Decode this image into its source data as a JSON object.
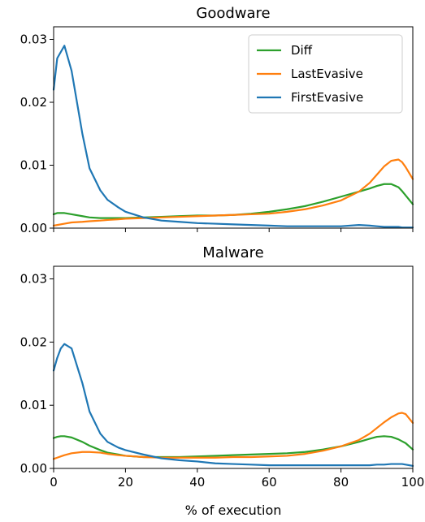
{
  "chart_data": [
    {
      "type": "line",
      "title": "Goodware",
      "xlabel": "",
      "ylabel": "",
      "xlim": [
        0,
        100
      ],
      "ylim": [
        0,
        0.032
      ],
      "yticks": [
        "0.00",
        "0.01",
        "0.02",
        "0.03"
      ],
      "ytick_values": [
        0,
        0.01,
        0.02,
        0.03
      ],
      "xticks": [],
      "xtick_values": [
        0,
        20,
        40,
        60,
        80,
        100
      ],
      "legend": {
        "placement": "top-right",
        "entries": [
          "Diff",
          "LastEvasive",
          "FirstEvasive"
        ]
      },
      "x": [
        0,
        1,
        3,
        5,
        8,
        10,
        13,
        15,
        18,
        20,
        25,
        30,
        35,
        40,
        45,
        50,
        55,
        60,
        65,
        70,
        75,
        80,
        85,
        88,
        90,
        92,
        94,
        96,
        97,
        98,
        100
      ],
      "series": [
        {
          "name": "Diff",
          "color": "#2ca02c",
          "values": [
            0.0022,
            0.0024,
            0.0024,
            0.0022,
            0.0019,
            0.0017,
            0.0016,
            0.0016,
            0.0016,
            0.0016,
            0.0017,
            0.0018,
            0.0019,
            0.002,
            0.002,
            0.0021,
            0.0023,
            0.0026,
            0.003,
            0.0035,
            0.0042,
            0.005,
            0.0058,
            0.0063,
            0.0067,
            0.007,
            0.007,
            0.0065,
            0.0059,
            0.0052,
            0.0038
          ]
        },
        {
          "name": "LastEvasive",
          "color": "#ff7f0e",
          "values": [
            0.0004,
            0.0005,
            0.0007,
            0.0009,
            0.001,
            0.0011,
            0.0012,
            0.0013,
            0.0014,
            0.0015,
            0.0016,
            0.0017,
            0.0018,
            0.0019,
            0.002,
            0.0021,
            0.0022,
            0.0023,
            0.0026,
            0.003,
            0.0036,
            0.0044,
            0.0058,
            0.0072,
            0.0085,
            0.0098,
            0.0107,
            0.0109,
            0.0105,
            0.0097,
            0.0078
          ]
        },
        {
          "name": "FirstEvasive",
          "color": "#1f77b4",
          "values": [
            0.022,
            0.027,
            0.029,
            0.025,
            0.015,
            0.0095,
            0.006,
            0.0045,
            0.0033,
            0.0026,
            0.0017,
            0.0012,
            0.001,
            0.0008,
            0.0007,
            0.0006,
            0.0005,
            0.0004,
            0.0003,
            0.0003,
            0.0003,
            0.0003,
            0.0005,
            0.0004,
            0.0003,
            0.0002,
            0.0002,
            0.0002,
            0.0001,
            0.0001,
            0.0001
          ]
        }
      ]
    },
    {
      "type": "line",
      "title": "Malware",
      "xlabel": "% of execution",
      "ylabel": "",
      "xlim": [
        0,
        100
      ],
      "ylim": [
        0,
        0.032
      ],
      "yticks": [
        "0.00",
        "0.01",
        "0.02",
        "0.03"
      ],
      "ytick_values": [
        0,
        0.01,
        0.02,
        0.03
      ],
      "xticks": [
        "0",
        "20",
        "40",
        "60",
        "80",
        "100"
      ],
      "xtick_values": [
        0,
        20,
        40,
        60,
        80,
        100
      ],
      "x": [
        0,
        1,
        2,
        3,
        5,
        8,
        10,
        13,
        15,
        18,
        20,
        25,
        30,
        35,
        40,
        45,
        50,
        55,
        60,
        65,
        70,
        75,
        80,
        85,
        88,
        90,
        92,
        94,
        96,
        97,
        98,
        100
      ],
      "series": [
        {
          "name": "Diff",
          "color": "#2ca02c",
          "values": [
            0.0048,
            0.005,
            0.0051,
            0.0051,
            0.0049,
            0.0042,
            0.0036,
            0.0029,
            0.0025,
            0.0022,
            0.002,
            0.0018,
            0.0018,
            0.0018,
            0.0019,
            0.002,
            0.0021,
            0.0022,
            0.0023,
            0.0024,
            0.0026,
            0.003,
            0.0035,
            0.0042,
            0.0047,
            0.005,
            0.0051,
            0.005,
            0.0046,
            0.0043,
            0.004,
            0.003
          ]
        },
        {
          "name": "LastEvasive",
          "color": "#ff7f0e",
          "values": [
            0.0015,
            0.0017,
            0.0019,
            0.0021,
            0.0024,
            0.0026,
            0.0026,
            0.0025,
            0.0023,
            0.0021,
            0.002,
            0.0018,
            0.0017,
            0.0017,
            0.0017,
            0.0017,
            0.0018,
            0.0018,
            0.0019,
            0.002,
            0.0023,
            0.0028,
            0.0035,
            0.0045,
            0.0055,
            0.0064,
            0.0073,
            0.0081,
            0.0087,
            0.0088,
            0.0086,
            0.0072
          ]
        },
        {
          "name": "FirstEvasive",
          "color": "#1f77b4",
          "values": [
            0.0155,
            0.0175,
            0.019,
            0.0197,
            0.019,
            0.0135,
            0.009,
            0.0055,
            0.0042,
            0.0033,
            0.0029,
            0.0022,
            0.0016,
            0.0013,
            0.0011,
            0.0008,
            0.0007,
            0.0006,
            0.0005,
            0.0005,
            0.0005,
            0.0005,
            0.0005,
            0.0005,
            0.0005,
            0.0006,
            0.0006,
            0.0007,
            0.0007,
            0.0007,
            0.0006,
            0.0004
          ]
        }
      ]
    }
  ]
}
